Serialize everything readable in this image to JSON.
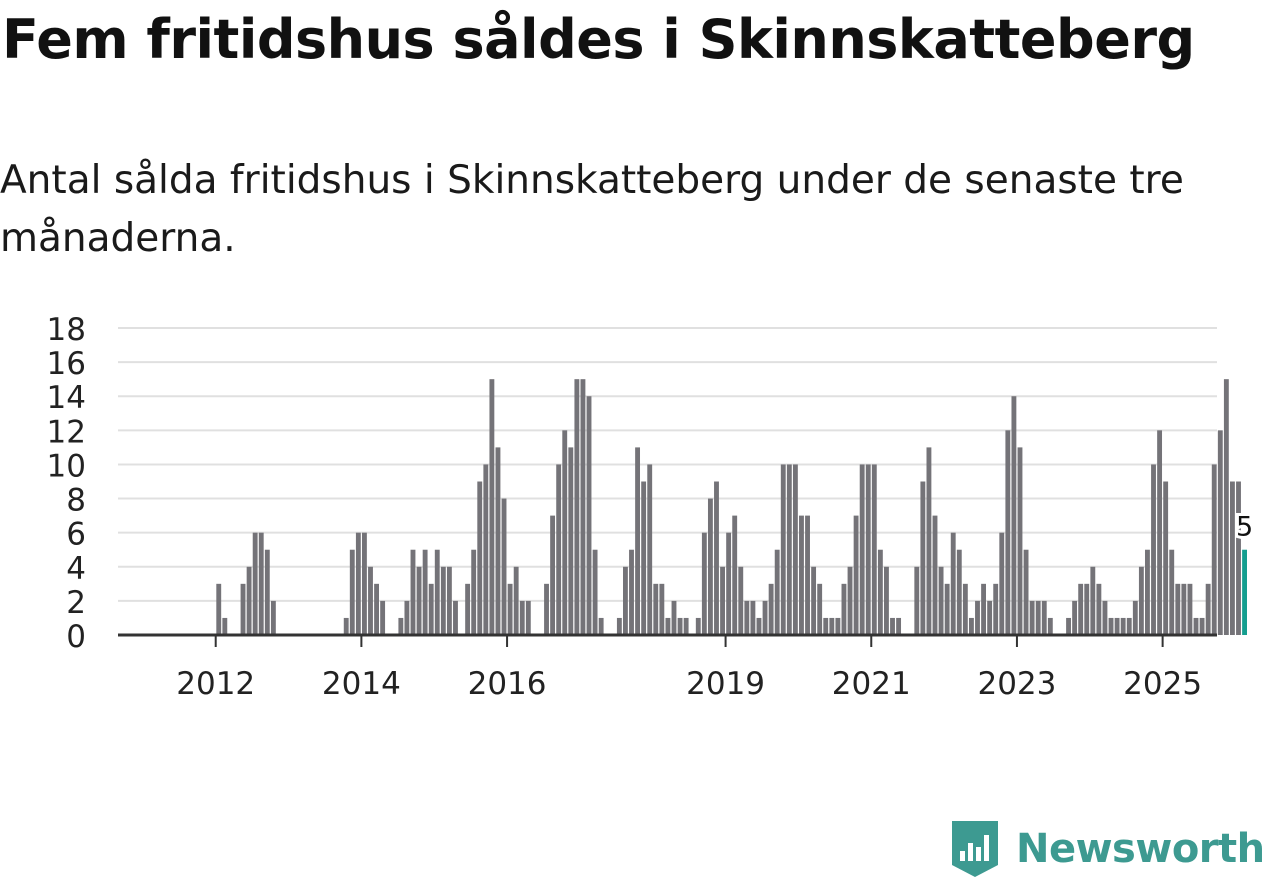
{
  "title": "Fem fritidshus såldes i Skinnskatteberg",
  "subtitle": "Antal sålda fritidshus i Skinnskatteberg under de senaste tre månaderna.",
  "brand": {
    "name": "Newsworthy",
    "color": "#3d9a91"
  },
  "colors": {
    "bar": "#747378",
    "highlight": "#149e8f",
    "grid": "#e0e0e0",
    "axis": "#333333"
  },
  "chart_data": {
    "type": "bar",
    "title": "Fem fritidshus såldes i Skinnskatteberg",
    "xlabel": "",
    "ylabel": "",
    "ylim": [
      0,
      18
    ],
    "yticks": [
      0,
      2,
      4,
      6,
      8,
      10,
      12,
      14,
      16,
      18
    ],
    "x_start": "2011-01",
    "xtick_labels": [
      "2012",
      "2014",
      "2016",
      "2019",
      "2021",
      "2023",
      "2025"
    ],
    "xtick_months": [
      "2012-01",
      "2014-01",
      "2016-01",
      "2019-01",
      "2021-01",
      "2023-01",
      "2025-01"
    ],
    "highlight_label": "5",
    "values": [
      0,
      0,
      0,
      0,
      0,
      0,
      0,
      0,
      0,
      0,
      0,
      0,
      3,
      1,
      0,
      0,
      3,
      4,
      6,
      6,
      5,
      2,
      0,
      0,
      0,
      0,
      0,
      0,
      0,
      0,
      0,
      0,
      0,
      1,
      5,
      6,
      6,
      4,
      3,
      2,
      0,
      0,
      1,
      2,
      5,
      4,
      5,
      3,
      5,
      4,
      4,
      2,
      0,
      3,
      5,
      9,
      10,
      15,
      11,
      8,
      3,
      4,
      2,
      2,
      0,
      0,
      3,
      7,
      10,
      12,
      11,
      15,
      15,
      14,
      5,
      1,
      0,
      0,
      1,
      4,
      5,
      11,
      9,
      10,
      3,
      3,
      1,
      2,
      1,
      1,
      0,
      1,
      6,
      8,
      9,
      4,
      6,
      7,
      4,
      2,
      2,
      1,
      2,
      3,
      5,
      10,
      10,
      10,
      7,
      7,
      4,
      3,
      1,
      1,
      1,
      3,
      4,
      7,
      10,
      10,
      10,
      5,
      4,
      1,
      1,
      0,
      0,
      4,
      9,
      11,
      7,
      4,
      3,
      6,
      5,
      3,
      1,
      2,
      3,
      2,
      3,
      6,
      12,
      14,
      11,
      5,
      2,
      2,
      2,
      1,
      0,
      0,
      1,
      2,
      3,
      3,
      4,
      3,
      2,
      1,
      1,
      1,
      1,
      2,
      4,
      5,
      10,
      12,
      9,
      5,
      3,
      3,
      3,
      1,
      1,
      3,
      10,
      12,
      15,
      9,
      9,
      5
    ]
  }
}
